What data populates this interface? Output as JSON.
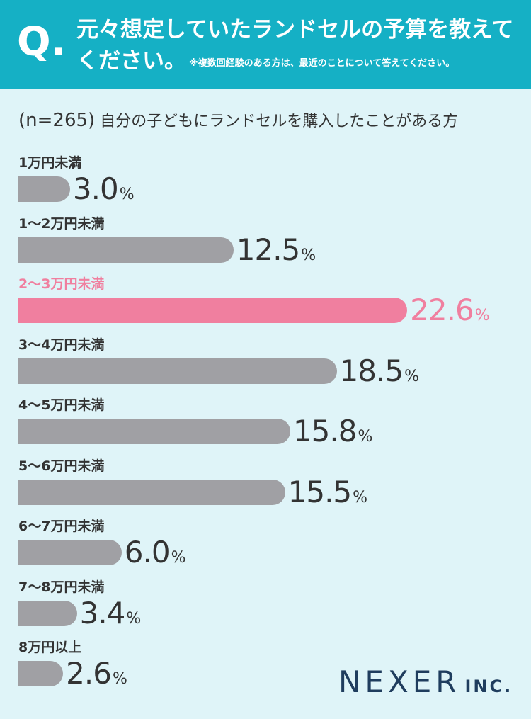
{
  "header": {
    "q_mark": "Q.",
    "question_line1": "元々想定していたランドセルの予算を教えて",
    "question_line2": "ください。",
    "note": "※複数回経験のある方は、最近のことについて答えてください。"
  },
  "sample": {
    "n_label": "(n=265)",
    "description": "自分の子どもにランドセルを購入したことがある方"
  },
  "chart_data": {
    "type": "bar",
    "orientation": "horizontal",
    "categories": [
      "1万円未満",
      "1〜2万円未満",
      "2〜3万円未満",
      "3〜4万円未満",
      "4〜5万円未満",
      "5〜6万円未満",
      "6〜7万円未満",
      "7〜8万円未満",
      "8万円以上"
    ],
    "values": [
      3.0,
      12.5,
      22.6,
      18.5,
      15.8,
      15.5,
      6.0,
      3.4,
      2.6
    ],
    "value_labels": [
      "3.0",
      "12.5",
      "22.6",
      "18.5",
      "15.8",
      "15.5",
      "6.0",
      "3.4",
      "2.6"
    ],
    "unit": "%",
    "highlight_index": 2,
    "colors": {
      "bar": "#a0a0a4",
      "highlight": "#f07f9f",
      "text": "#333333"
    }
  },
  "brand": {
    "logo_main": "NEXER",
    "logo_sub": "INC."
  },
  "colors": {
    "header_bg": "#15b0c5",
    "page_bg": "#dff4f8"
  }
}
